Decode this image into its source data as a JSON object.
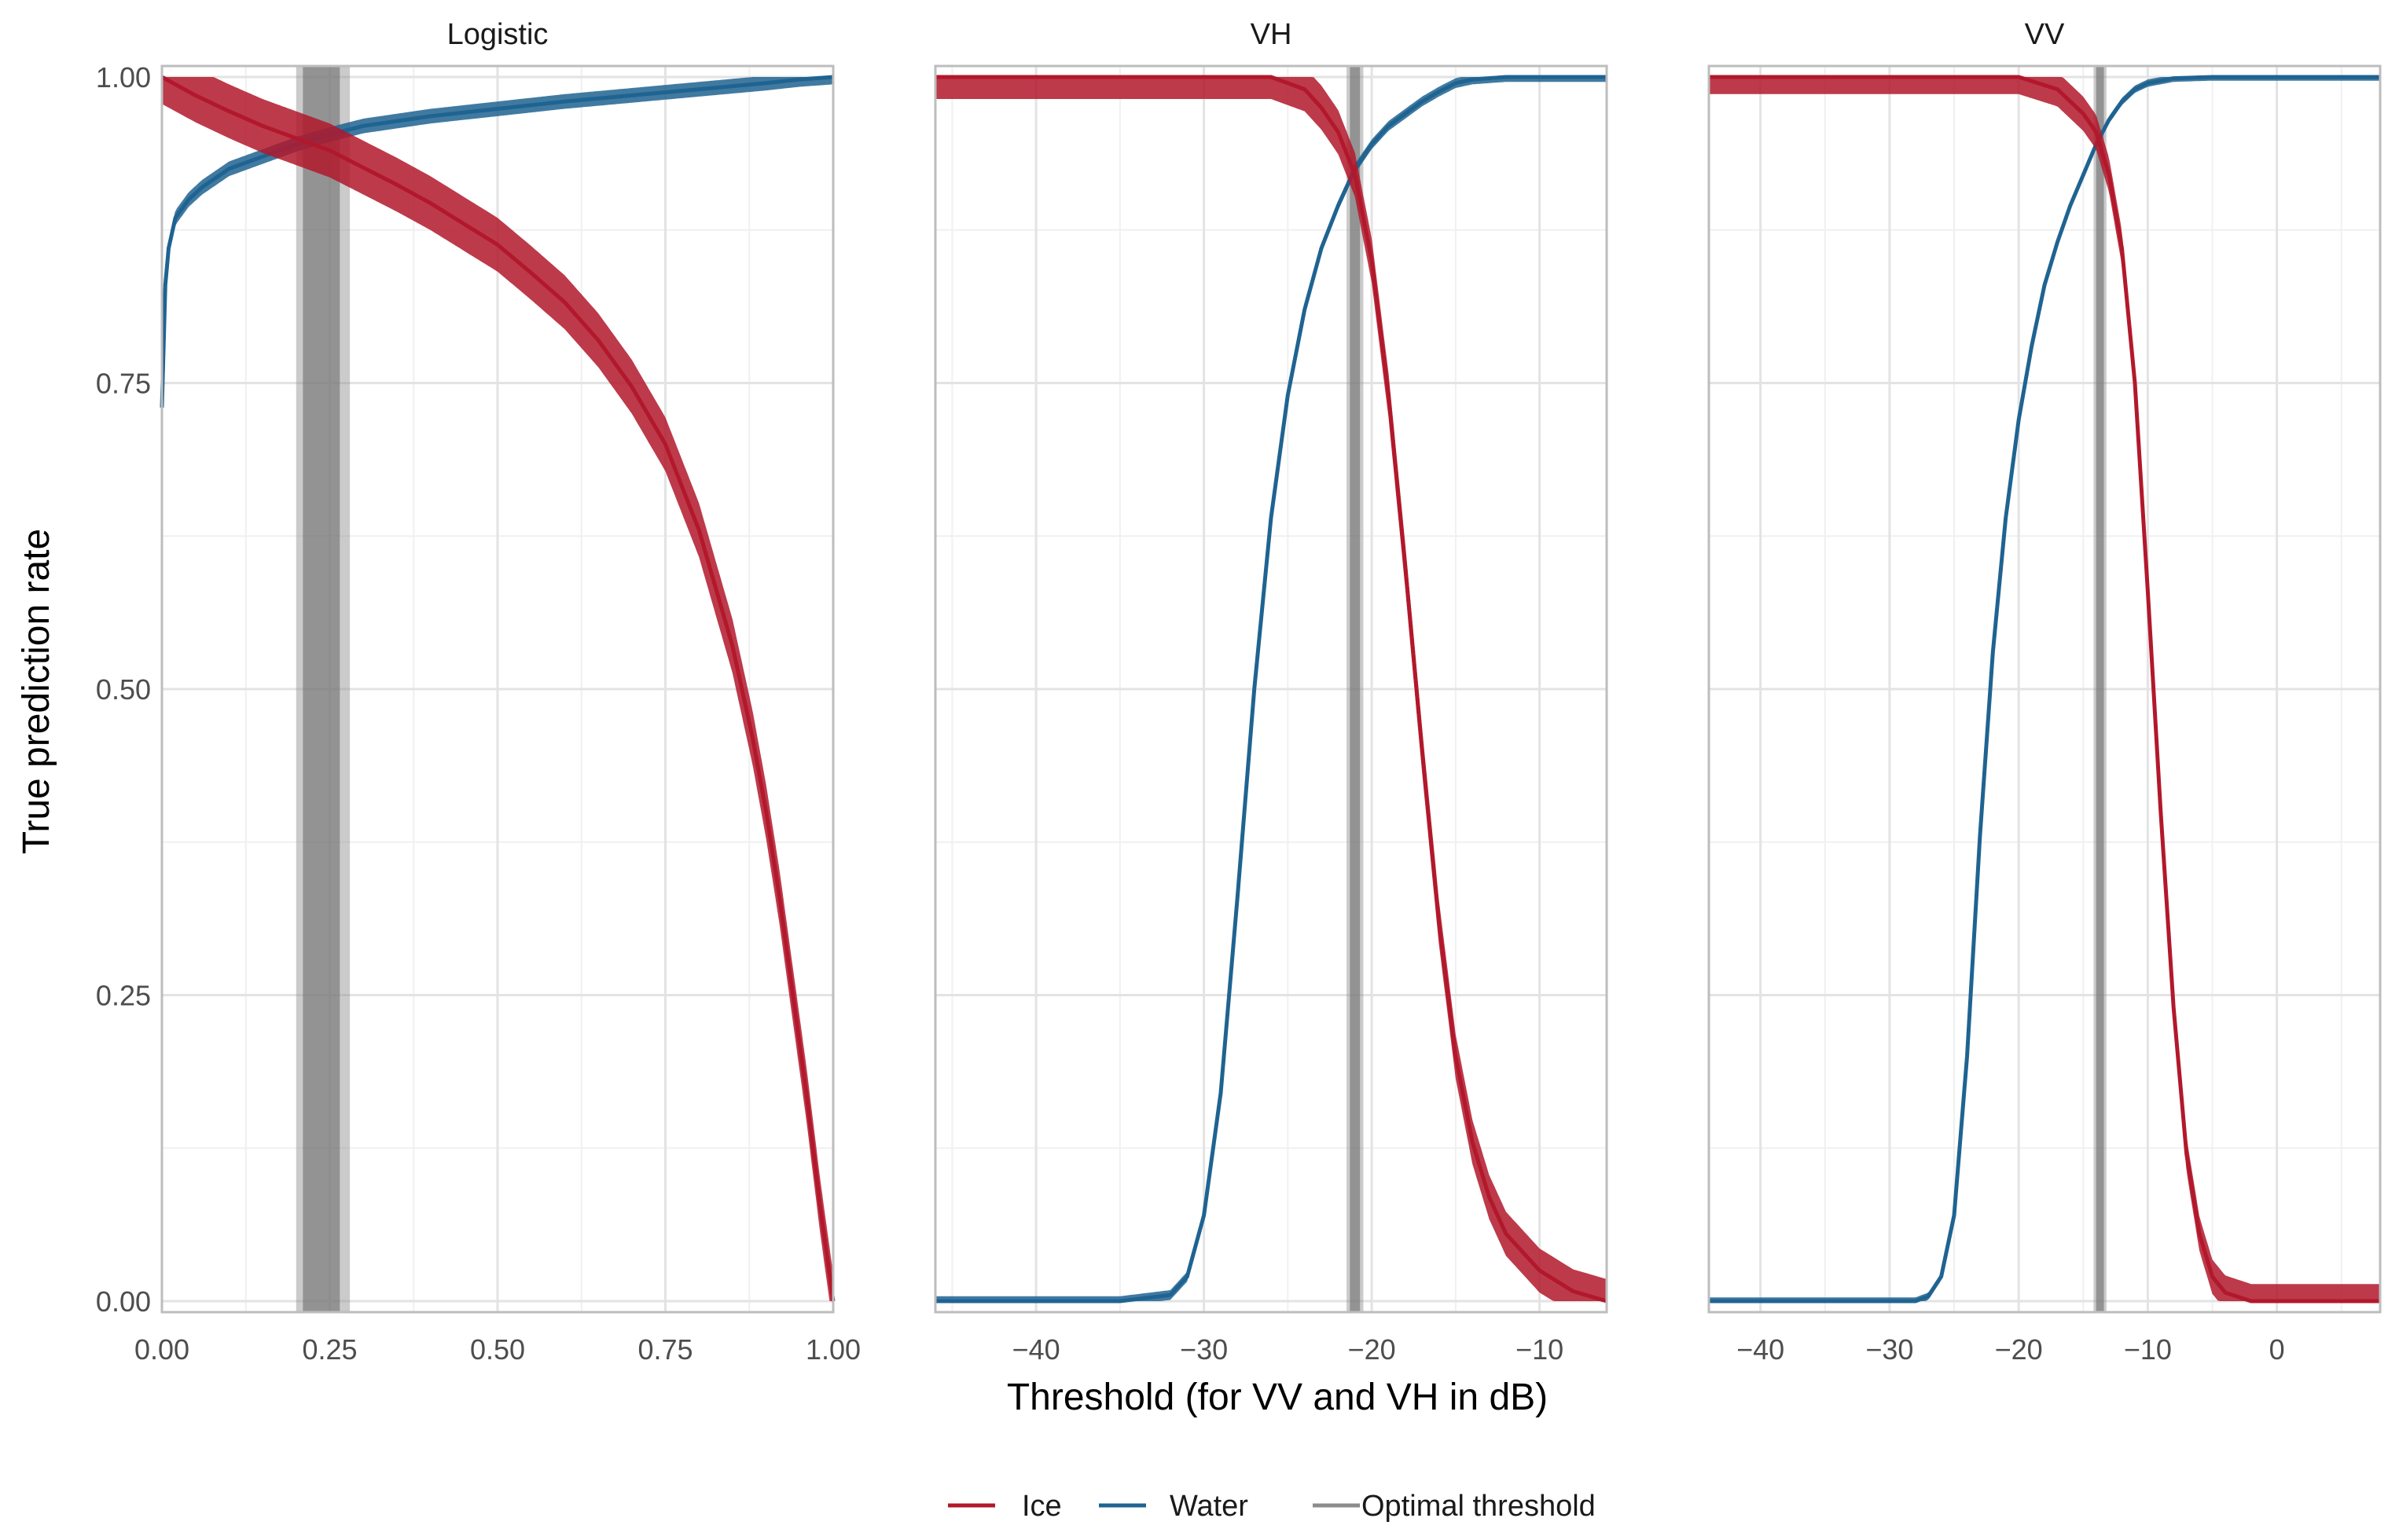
{
  "chart_data": {
    "type": "line",
    "ylabel": "True prediction rate",
    "xlabel": "Threshold (for VV and VH in dB)",
    "legend": {
      "position": "bottom",
      "entries": [
        {
          "label": "Ice",
          "color": "#b2182b"
        },
        {
          "label": "Water",
          "color": "#1f6391"
        },
        {
          "label": "Optimal threshold",
          "color": "#8c8c8c"
        }
      ]
    },
    "y_range": [
      0,
      1
    ],
    "y_ticks": [
      0.0,
      0.25,
      0.5,
      0.75,
      1.0
    ],
    "y_tick_labels": [
      "0.00",
      "0.25",
      "0.50",
      "0.75",
      "1.00"
    ],
    "panels": [
      {
        "title": "Logistic",
        "x_range": [
          0,
          1
        ],
        "x_ticks": [
          0,
          0.25,
          0.5,
          0.75,
          1.0
        ],
        "x_tick_labels": [
          "0.00",
          "0.25",
          "0.50",
          "0.75",
          "1.00"
        ],
        "optimal_threshold": {
          "min": 0.2,
          "max": 0.28,
          "core_min": 0.21,
          "core_max": 0.265
        },
        "series": [
          {
            "name": "Water",
            "band": 0.006,
            "x": [
              0,
              0.005,
              0.01,
              0.02,
              0.04,
              0.06,
              0.1,
              0.15,
              0.2,
              0.25,
              0.3,
              0.4,
              0.5,
              0.6,
              0.7,
              0.8,
              0.9,
              0.95,
              1.0
            ],
            "y": [
              0.73,
              0.83,
              0.86,
              0.885,
              0.9,
              0.91,
              0.925,
              0.935,
              0.945,
              0.953,
              0.96,
              0.968,
              0.974,
              0.98,
              0.985,
              0.99,
              0.995,
              0.998,
              1.0
            ]
          },
          {
            "name": "Ice",
            "band": 0.022,
            "x": [
              0,
              0.05,
              0.1,
              0.15,
              0.2,
              0.25,
              0.3,
              0.35,
              0.4,
              0.45,
              0.5,
              0.55,
              0.6,
              0.65,
              0.7,
              0.75,
              0.8,
              0.85,
              0.88,
              0.9,
              0.92,
              0.94,
              0.96,
              0.98,
              1.0
            ],
            "y": [
              1.0,
              0.985,
              0.972,
              0.96,
              0.95,
              0.94,
              0.926,
              0.912,
              0.897,
              0.88,
              0.863,
              0.84,
              0.816,
              0.785,
              0.747,
              0.7,
              0.63,
              0.535,
              0.46,
              0.4,
              0.33,
              0.25,
              0.17,
              0.08,
              0.0
            ]
          }
        ]
      },
      {
        "title": "VH",
        "x_range": [
          -46,
          -6
        ],
        "x_ticks": [
          -40,
          -30,
          -20,
          -10
        ],
        "x_tick_labels": [
          "−40",
          "−30",
          "−20",
          "−10"
        ],
        "optimal_threshold": {
          "min": -21.5,
          "max": -20.5,
          "core_min": -21.3,
          "core_max": -20.7
        },
        "series": [
          {
            "name": "Water",
            "band": 0.004,
            "x": [
              -46,
              -35,
              -32,
              -31,
              -30,
              -29,
              -28,
              -27,
              -26,
              -25,
              -24,
              -23,
              -22,
              -21,
              -20,
              -19,
              -18,
              -17,
              -16,
              -15,
              -14,
              -12,
              -6
            ],
            "y": [
              0.0,
              0.0,
              0.005,
              0.02,
              0.07,
              0.17,
              0.33,
              0.5,
              0.64,
              0.74,
              0.81,
              0.86,
              0.895,
              0.925,
              0.945,
              0.96,
              0.97,
              0.98,
              0.988,
              0.995,
              0.998,
              1.0,
              1.0
            ]
          },
          {
            "name": "Ice",
            "band": 0.018,
            "x": [
              -46,
              -26,
              -24,
              -23,
              -22,
              -21,
              -20,
              -19,
              -18,
              -17,
              -16,
              -15,
              -14,
              -13,
              -12,
              -10,
              -8,
              -6
            ],
            "y": [
              1.0,
              1.0,
              0.99,
              0.975,
              0.955,
              0.92,
              0.85,
              0.74,
              0.6,
              0.45,
              0.31,
              0.2,
              0.13,
              0.085,
              0.055,
              0.025,
              0.008,
              0.0
            ]
          }
        ]
      },
      {
        "title": "VV",
        "x_range": [
          -44,
          8
        ],
        "x_ticks": [
          -40,
          -30,
          -20,
          -10,
          0
        ],
        "x_tick_labels": [
          "−40",
          "−30",
          "−20",
          "−10",
          "0"
        ],
        "optimal_threshold": {
          "min": -14.2,
          "max": -13.2,
          "core_min": -14.0,
          "core_max": -13.4
        },
        "series": [
          {
            "name": "Water",
            "band": 0.003,
            "x": [
              -44,
              -28,
              -27,
              -26,
              -25,
              -24,
              -23,
              -22,
              -21,
              -20,
              -19,
              -18,
              -17,
              -16,
              -15,
              -14,
              -13,
              -12,
              -11,
              -10,
              -8,
              -5,
              8
            ],
            "y": [
              0.0,
              0.0,
              0.004,
              0.02,
              0.07,
              0.2,
              0.38,
              0.53,
              0.64,
              0.72,
              0.78,
              0.83,
              0.865,
              0.895,
              0.92,
              0.945,
              0.965,
              0.98,
              0.99,
              0.995,
              0.999,
              1.0,
              1.0
            ]
          },
          {
            "name": "Ice",
            "band": 0.014,
            "x": [
              -44,
              -20,
              -17,
              -16,
              -15,
              -14,
              -13,
              -12,
              -11,
              -10,
              -9,
              -8,
              -7,
              -6,
              -5,
              -4,
              -2,
              8
            ],
            "y": [
              1.0,
              1.0,
              0.99,
              0.98,
              0.97,
              0.955,
              0.92,
              0.86,
              0.75,
              0.58,
              0.4,
              0.24,
              0.12,
              0.055,
              0.02,
              0.007,
              0.0,
              0.0
            ]
          }
        ]
      }
    ]
  }
}
